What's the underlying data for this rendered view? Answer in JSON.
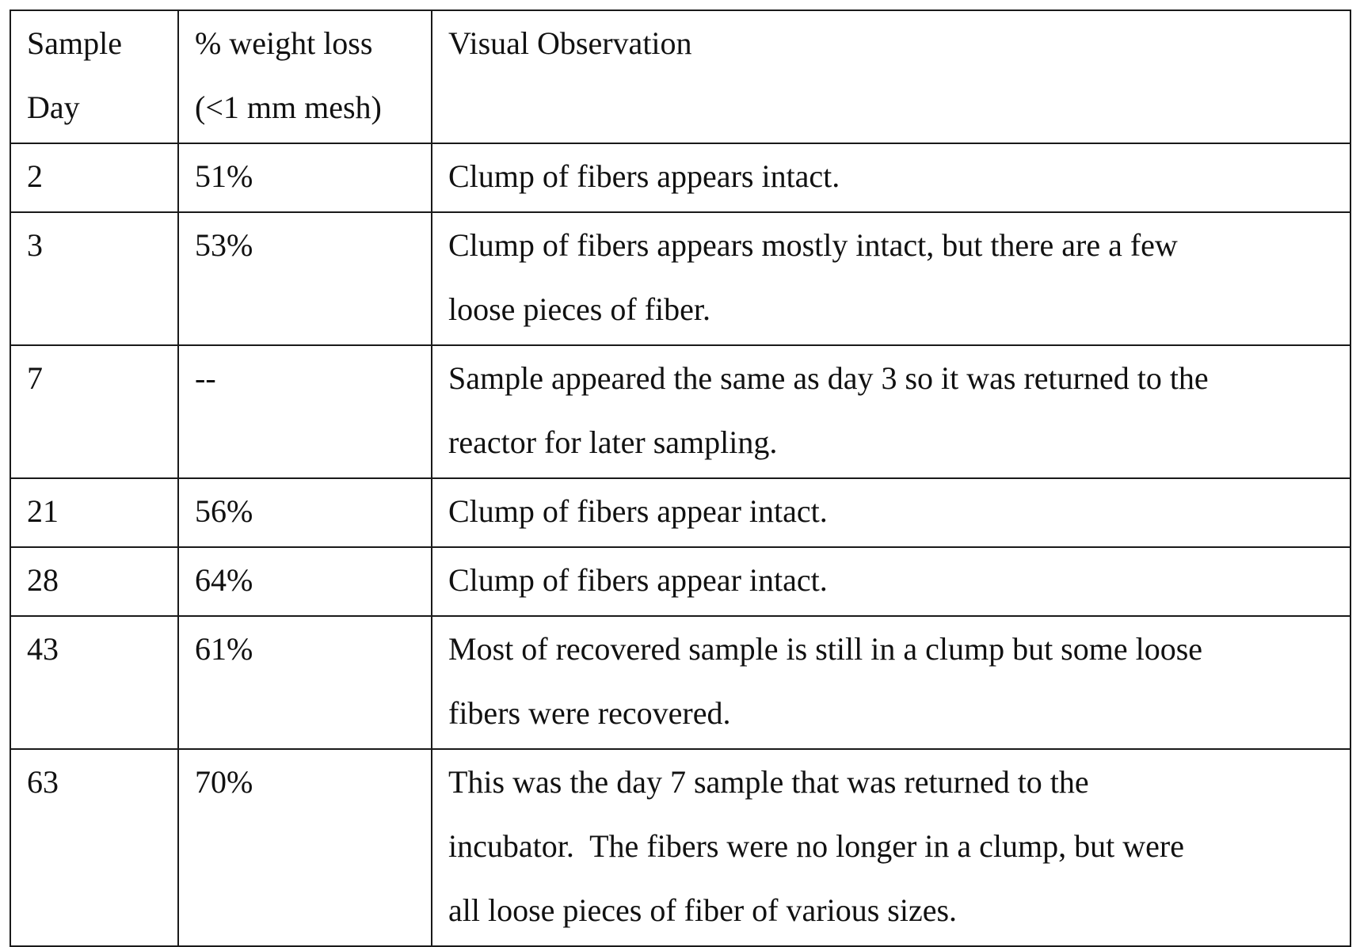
{
  "table": {
    "headers": [
      [
        "Sample",
        "Day"
      ],
      [
        "% weight loss",
        "(<1 mm mesh)"
      ],
      [
        "Visual Observation"
      ]
    ],
    "rows": [
      {
        "day": "2",
        "weight_loss": "51%",
        "observation_lines": [
          "Clump of fibers appears intact."
        ]
      },
      {
        "day": "3",
        "weight_loss": "53%",
        "observation_lines": [
          "Clump of fibers appears mostly intact, but there are a few",
          "loose pieces of fiber."
        ]
      },
      {
        "day": "7",
        "weight_loss": "--",
        "observation_lines": [
          "Sample appeared the same as day 3 so it was returned to the",
          "reactor for later sampling."
        ]
      },
      {
        "day": "21",
        "weight_loss": "56%",
        "observation_lines": [
          "Clump of fibers appear intact."
        ]
      },
      {
        "day": "28",
        "weight_loss": "64%",
        "observation_lines": [
          "Clump of fibers appear intact."
        ]
      },
      {
        "day": "43",
        "weight_loss": "61%",
        "observation_lines": [
          "Most of recovered sample is still in a clump but some loose",
          "fibers were recovered."
        ]
      },
      {
        "day": "63",
        "weight_loss": "70%",
        "observation_lines": [
          "This was the day 7 sample that was returned to the",
          "incubator.  The fibers were no longer in a clump, but were",
          "all loose pieces of fiber of various sizes."
        ]
      }
    ]
  }
}
